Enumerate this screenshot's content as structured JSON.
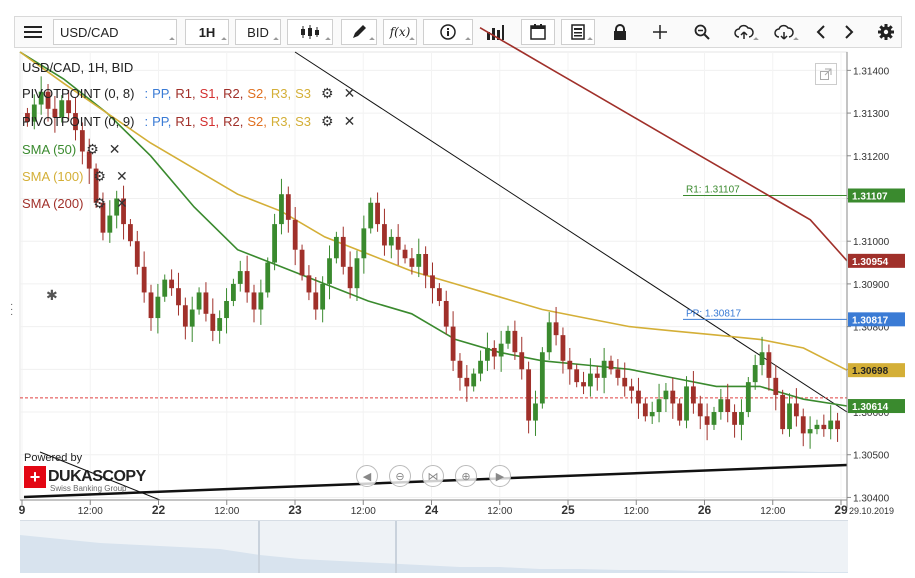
{
  "toolbar": {
    "symbol": "USD/CAD",
    "timeframe": "1H",
    "price_side": "BID",
    "fx_label": "f(x)"
  },
  "chart_title": "USD/CAD, 1H, BID",
  "indicators": [
    {
      "name": "PIVOTPOINT (0, 8)",
      "color": "#222222",
      "levels": true
    },
    {
      "name": "PIVOTPOINT (0, 9)",
      "color": "#222222",
      "levels": true
    },
    {
      "name": "SMA (50)",
      "color": "#3a8a2e"
    },
    {
      "name": "SMA (100)",
      "color": "#d4af37"
    },
    {
      "name": "SMA (200)",
      "color": "#a0302a"
    }
  ],
  "pivot_levels": [
    {
      "label": "PP,",
      "color": "#3a7bd5"
    },
    {
      "label": "R1,",
      "color": "#a0302a"
    },
    {
      "label": "S1,",
      "color": "#d32f2f"
    },
    {
      "label": "R2,",
      "color": "#a0302a"
    },
    {
      "label": "S2,",
      "color": "#e07020"
    },
    {
      "label": "R3,",
      "color": "#d4af37"
    },
    {
      "label": "S3",
      "color": "#d4af37"
    }
  ],
  "branding": {
    "powered_by": "Powered by",
    "name": "DUKASCOPY",
    "tagline": "Swiss Banking Group"
  },
  "chart_data": {
    "type": "candlestick",
    "symbol": "USD/CAD",
    "timeframe": "1H",
    "ylim": [
      1.30394,
      1.31443
    ],
    "y_ticks": [
      "1.31400",
      "1.31300",
      "1.31200",
      "1.31100",
      "1.31000",
      "1.30900",
      "1.30800",
      "1.30700",
      "1.30600",
      "1.30500",
      "1.30400"
    ],
    "x_ticks": [
      "9",
      "12:00",
      "22",
      "12:00",
      "23",
      "12:00",
      "24",
      "12:00",
      "25",
      "12:00",
      "26",
      "12:00",
      "29"
    ],
    "x_tick_bold": [
      true,
      false,
      true,
      false,
      true,
      false,
      true,
      false,
      true,
      false,
      true,
      false,
      true
    ],
    "date_label": "29.10.2019",
    "close_series": [
      1.3128,
      1.3132,
      1.3135,
      1.3131,
      1.3129,
      1.3133,
      1.313,
      1.3126,
      1.3121,
      1.3117,
      1.3109,
      1.3102,
      1.3106,
      1.311,
      1.3104,
      1.31,
      1.3094,
      1.3088,
      1.3082,
      1.3087,
      1.3091,
      1.3089,
      1.3085,
      1.308,
      1.3084,
      1.3088,
      1.3083,
      1.3079,
      1.3082,
      1.3086,
      1.309,
      1.3093,
      1.3088,
      1.3084,
      1.3088,
      1.3095,
      1.3104,
      1.3111,
      1.3105,
      1.3098,
      1.3092,
      1.3088,
      1.3084,
      1.309,
      1.3096,
      1.3101,
      1.3094,
      1.3089,
      1.3096,
      1.3103,
      1.3109,
      1.3104,
      1.3099,
      1.3101,
      1.3098,
      1.3096,
      1.3094,
      1.3097,
      1.3092,
      1.3089,
      1.3086,
      1.308,
      1.3072,
      1.3068,
      1.3066,
      1.3069,
      1.3072,
      1.3075,
      1.3073,
      1.3076,
      1.3079,
      1.3074,
      1.307,
      1.3058,
      1.3062,
      1.3074,
      1.3081,
      1.3078,
      1.3072,
      1.307,
      1.3067,
      1.3066,
      1.3069,
      1.3068,
      1.3072,
      1.307,
      1.3068,
      1.3066,
      1.3065,
      1.3062,
      1.3059,
      1.306,
      1.3063,
      1.3065,
      1.3062,
      1.3058,
      1.3066,
      1.3062,
      1.3059,
      1.3057,
      1.306,
      1.3063,
      1.306,
      1.3057,
      1.306,
      1.3067,
      1.3071,
      1.3074,
      1.3068,
      1.3064,
      1.3056,
      1.3062,
      1.3059,
      1.3055,
      1.3056,
      1.3057,
      1.3056,
      1.3058,
      1.3056
    ],
    "sma": [
      {
        "name": "SMA (50)",
        "color": "#3a8a2e",
        "values": [
          1.31443,
          1.3138,
          1.313,
          1.312,
          1.3108,
          1.3098,
          1.3094,
          1.309,
          1.3086,
          1.3083,
          1.3077,
          1.3074,
          1.3072,
          1.3071,
          1.307,
          1.3068,
          1.3066,
          1.3066,
          1.3063,
          1.30614
        ]
      },
      {
        "name": "SMA (100)",
        "color": "#d4af37",
        "values": [
          1.31443,
          1.3137,
          1.313,
          1.3123,
          1.3117,
          1.3111,
          1.3107,
          1.3101,
          1.3097,
          1.3093,
          1.309,
          1.3087,
          1.3084,
          1.3082,
          1.308,
          1.3079,
          1.3078,
          1.3077,
          1.3075,
          1.30698
        ]
      },
      {
        "name": "SMA (200)",
        "color": "#a0302a",
        "values": [
          1.315,
          1.3145,
          1.314,
          1.3135,
          1.313,
          1.3125,
          1.312,
          1.3115,
          1.311,
          1.3105,
          1.30954
        ]
      }
    ],
    "horizontal_levels": [
      {
        "label": "R1: 1.31107",
        "value": 1.31107,
        "color": "#3a8a2e"
      },
      {
        "label": "PP: 1.30817",
        "value": 1.30817,
        "color": "#3a7bd5"
      }
    ],
    "price_badges": [
      {
        "text": "1.31107",
        "value": 1.31107,
        "color": "#3a8a2e"
      },
      {
        "text": "1.30954",
        "value": 1.30954,
        "color": "#a0302a"
      },
      {
        "text": "1.30817",
        "value": 1.30817,
        "color": "#3a7bd5"
      },
      {
        "text": "1.30698",
        "value": 1.30698,
        "color": "#d4af37"
      },
      {
        "text": "1.30614",
        "value": 1.30614,
        "color": "#3a8a2e"
      }
    ],
    "current_price": 1.30633,
    "up_color": "#3a8a2e",
    "down_color": "#a0302a"
  }
}
